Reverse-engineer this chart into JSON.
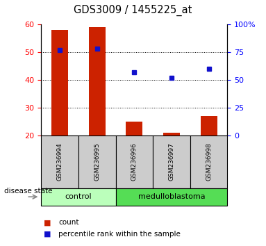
{
  "title": "GDS3009 / 1455225_at",
  "samples": [
    "GSM236994",
    "GSM236995",
    "GSM236996",
    "GSM236997",
    "GSM236998"
  ],
  "bar_values": [
    58,
    59,
    25,
    21,
    27
  ],
  "percentile_values": [
    77,
    78,
    57,
    52,
    60
  ],
  "left_ylim": [
    20,
    60
  ],
  "right_ylim": [
    0,
    100
  ],
  "left_yticks": [
    20,
    30,
    40,
    50,
    60
  ],
  "right_yticks": [
    0,
    25,
    50,
    75,
    100
  ],
  "right_yticklabels": [
    "0",
    "25",
    "50",
    "75",
    "100%"
  ],
  "bar_color": "#cc2200",
  "dot_color": "#1111cc",
  "groups": [
    {
      "label": "control",
      "indices": [
        0,
        1
      ],
      "color": "#bbffbb"
    },
    {
      "label": "medulloblastoma",
      "indices": [
        2,
        3,
        4
      ],
      "color": "#55dd55"
    }
  ],
  "group_row_label": "disease state",
  "legend_items": [
    {
      "label": "count",
      "color": "#cc2200"
    },
    {
      "label": "percentile rank within the sample",
      "color": "#1111cc"
    }
  ],
  "sample_box_color": "#cccccc",
  "figsize": [
    3.83,
    3.54
  ],
  "dpi": 100
}
